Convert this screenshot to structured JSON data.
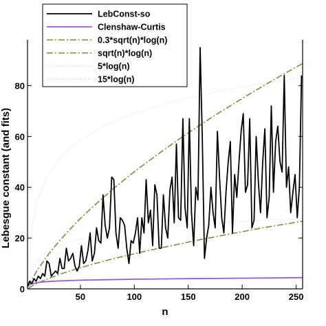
{
  "chart_data": {
    "type": "line",
    "title": "",
    "xlabel": "n",
    "ylabel": "Lebesgue constant (and fits)",
    "xlim": [
      1,
      256
    ],
    "ylim": [
      0,
      98
    ],
    "xticks": [
      50,
      100,
      150,
      200,
      250
    ],
    "yticks": [
      0,
      20,
      40,
      60,
      80
    ],
    "grid": false,
    "legend_position": "top-left",
    "series": [
      {
        "name": "LebConst-so",
        "color": "#000000",
        "style": "solid",
        "x": [
          1,
          3,
          5,
          7,
          9,
          11,
          13,
          15,
          17,
          19,
          21,
          23,
          25,
          27,
          29,
          31,
          33,
          35,
          37,
          39,
          41,
          43,
          45,
          47,
          49,
          51,
          53,
          55,
          57,
          59,
          61,
          63,
          65,
          67,
          69,
          71,
          73,
          75,
          77,
          79,
          81,
          83,
          85,
          87,
          89,
          91,
          93,
          95,
          97,
          99,
          101,
          103,
          105,
          107,
          109,
          111,
          113,
          115,
          117,
          119,
          121,
          123,
          125,
          127,
          129,
          131,
          133,
          135,
          137,
          139,
          141,
          143,
          145,
          147,
          149,
          151,
          153,
          155,
          157,
          159,
          161,
          163,
          165,
          167,
          169,
          171,
          173,
          175,
          177,
          179,
          181,
          183,
          185,
          187,
          189,
          191,
          193,
          195,
          197,
          199,
          201,
          203,
          205,
          207,
          209,
          211,
          213,
          215,
          217,
          219,
          221,
          223,
          225,
          227,
          229,
          231,
          233,
          235,
          237,
          239,
          241,
          243,
          245,
          247,
          249,
          251,
          253,
          255
        ],
        "y": [
          1,
          3,
          2,
          4,
          3,
          5,
          4,
          6,
          5,
          11,
          10,
          5,
          6,
          7,
          6,
          12,
          8,
          8,
          16,
          11,
          12,
          14,
          9,
          7,
          9,
          17,
          10,
          11,
          15,
          22,
          11,
          14,
          24,
          19,
          18,
          37,
          25,
          20,
          24,
          44,
          43,
          22,
          16,
          28,
          27,
          25,
          16,
          10,
          19,
          18,
          22,
          28,
          14,
          28,
          22,
          43,
          26,
          31,
          17,
          41,
          37,
          16,
          16,
          37,
          24,
          20,
          39,
          44,
          26,
          57,
          28,
          27,
          67,
          32,
          24,
          67,
          30,
          17,
          40,
          35,
          95,
          60,
          12,
          20,
          25,
          40,
          30,
          24,
          62,
          44,
          28,
          22,
          38,
          50,
          58,
          22,
          45,
          36,
          50,
          62,
          69,
          38,
          41,
          67,
          24,
          27,
          60,
          42,
          30,
          50,
          63,
          28,
          36,
          72,
          38,
          58,
          64,
          50,
          46,
          84,
          40,
          48,
          30,
          38,
          45,
          28,
          40,
          84
        ]
      },
      {
        "name": "Clenshaw-Curtis",
        "color": "#9b59d0",
        "style": "solid",
        "x": [
          1,
          2,
          3,
          5,
          8,
          12,
          20,
          30,
          50,
          75,
          100,
          150,
          200,
          256
        ],
        "y": [
          1.0,
          1.2,
          1.7,
          2.0,
          2.3,
          2.6,
          2.9,
          3.1,
          3.4,
          3.6,
          3.8,
          4.0,
          4.2,
          4.4
        ]
      },
      {
        "name": "0.3*sqrt(n)*log(n)",
        "color": "#7f8c3a",
        "style": "dashdot",
        "x": [
          2,
          5,
          10,
          20,
          30,
          40,
          50,
          60,
          70,
          80,
          90,
          100,
          110,
          120,
          130,
          140,
          150,
          160,
          170,
          180,
          190,
          200,
          210,
          220,
          230,
          240,
          250,
          256
        ],
        "y": [
          0.3,
          1.1,
          2.2,
          4.0,
          5.6,
          7.0,
          8.3,
          9.5,
          10.7,
          11.8,
          12.8,
          13.8,
          14.8,
          15.7,
          16.6,
          17.5,
          18.4,
          19.3,
          20.1,
          20.9,
          21.7,
          22.5,
          23.3,
          24.1,
          24.8,
          25.5,
          26.2,
          26.6
        ]
      },
      {
        "name": "sqrt(n)*log(n)",
        "color": "#7f8c3a",
        "style": "dashdot",
        "x": [
          2,
          5,
          10,
          20,
          30,
          40,
          50,
          60,
          70,
          80,
          90,
          100,
          110,
          120,
          130,
          140,
          150,
          160,
          170,
          180,
          190,
          200,
          210,
          220,
          230,
          240,
          250,
          256
        ],
        "y": [
          1.0,
          3.6,
          7.3,
          13.4,
          18.6,
          23.3,
          27.7,
          31.7,
          35.5,
          39.2,
          42.7,
          46.1,
          49.3,
          52.4,
          55.5,
          58.5,
          61.4,
          64.2,
          67.0,
          69.7,
          72.3,
          74.9,
          77.5,
          80.0,
          82.5,
          84.9,
          87.3,
          88.7
        ]
      },
      {
        "name": "5*log(n)",
        "color": "#d6d6d6",
        "style": "dotted",
        "x": [
          2,
          5,
          10,
          20,
          30,
          40,
          50,
          75,
          100,
          125,
          150,
          175,
          200,
          225,
          256
        ],
        "y": [
          3.5,
          8.0,
          11.5,
          15.0,
          17.0,
          18.4,
          19.6,
          21.6,
          23.0,
          24.1,
          25.1,
          25.8,
          26.5,
          27.1,
          27.7
        ]
      },
      {
        "name": "15*log(n)",
        "color": "#d6d6d6",
        "style": "dotted",
        "x": [
          2,
          5,
          10,
          20,
          30,
          40,
          50,
          75,
          100,
          125,
          150,
          175,
          200,
          225,
          256
        ],
        "y": [
          10.4,
          24.1,
          34.5,
          44.9,
          51.0,
          55.3,
          58.7,
          64.8,
          69.1,
          72.4,
          75.2,
          77.5,
          79.5,
          81.2,
          83.2
        ]
      }
    ]
  }
}
